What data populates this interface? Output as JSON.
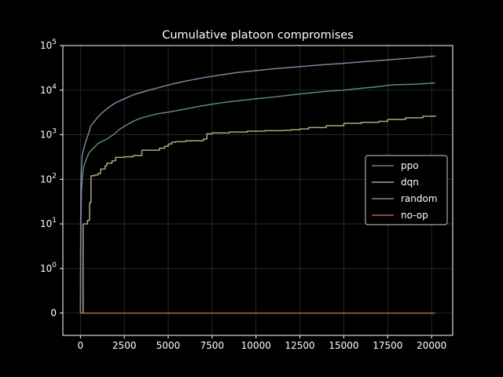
{
  "chart_data": {
    "type": "line",
    "title": "Cumulative platoon compromises",
    "xlabel": "",
    "ylabel": "",
    "yscale": "symlog",
    "xlim": [
      -1000,
      21200
    ],
    "ylim": [
      -0.5,
      100000
    ],
    "grid": true,
    "legend_position": "center-right",
    "background": "#000000",
    "x_ticks": [
      0,
      2500,
      5000,
      7500,
      10000,
      12500,
      15000,
      17500,
      20000
    ],
    "x_tick_labels": [
      "0",
      "2500",
      "5000",
      "7500",
      "10000",
      "12500",
      "15000",
      "17500",
      "20000"
    ],
    "y_ticks": [
      0,
      1,
      10,
      100,
      1000,
      10000,
      100000
    ],
    "y_tick_labels": [
      "0",
      "10^0",
      "10^1",
      "10^2",
      "10^3",
      "10^4",
      "10^5"
    ],
    "series": [
      {
        "name": "ppo",
        "color": "#5b8a78",
        "step": false,
        "x": [
          0,
          30,
          60,
          100,
          150,
          200,
          300,
          400,
          500,
          600,
          700,
          800,
          900,
          1000,
          1200,
          1500,
          1800,
          2000,
          2200,
          2500,
          2800,
          3000,
          3500,
          4000,
          4500,
          5000,
          6000,
          7000,
          8000,
          9000,
          10000,
          11000,
          12000,
          13000,
          14000,
          15000,
          16000,
          17000,
          17500,
          18000,
          19000,
          20200
        ],
        "values": [
          0,
          12,
          50,
          100,
          150,
          200,
          260,
          330,
          400,
          440,
          480,
          530,
          580,
          640,
          700,
          800,
          950,
          1100,
          1300,
          1550,
          1800,
          2000,
          2400,
          2700,
          3000,
          3200,
          3800,
          4500,
          5200,
          5800,
          6400,
          7000,
          7800,
          8600,
          9400,
          10000,
          11000,
          12000,
          12800,
          13200,
          13600,
          14500
        ]
      },
      {
        "name": "dqn",
        "color": "#a8ab7c",
        "step": true,
        "x": [
          0,
          120,
          150,
          400,
          520,
          600,
          800,
          1000,
          1150,
          1400,
          1500,
          1800,
          2000,
          2500,
          3000,
          3500,
          4500,
          4800,
          5000,
          5200,
          5400,
          6000,
          7000,
          7200,
          7500,
          8500,
          9500,
          10500,
          11500,
          12000,
          12500,
          13000,
          14000,
          15000,
          16000,
          17000,
          17500,
          18500,
          19500,
          20200
        ],
        "values": [
          0,
          0,
          10,
          12,
          30,
          120,
          125,
          135,
          170,
          200,
          230,
          260,
          310,
          320,
          340,
          450,
          500,
          550,
          620,
          680,
          700,
          730,
          800,
          1050,
          1100,
          1150,
          1200,
          1230,
          1250,
          1300,
          1350,
          1450,
          1600,
          1800,
          1900,
          2000,
          2200,
          2400,
          2600,
          2750
        ]
      },
      {
        "name": "random",
        "color": "#8481a3",
        "step": false,
        "x": [
          0,
          20,
          50,
          100,
          200,
          300,
          400,
          500,
          600,
          800,
          1000,
          1200,
          1500,
          1800,
          2000,
          2500,
          3000,
          3500,
          4000,
          4500,
          5000,
          5500,
          6000,
          7000,
          8000,
          9000,
          10000,
          11000,
          12000,
          13000,
          14000,
          15000,
          16000,
          17000,
          18000,
          19000,
          20200
        ],
        "values": [
          0,
          50,
          150,
          350,
          500,
          700,
          900,
          1200,
          1600,
          2000,
          2500,
          3000,
          3800,
          4600,
          5200,
          6400,
          7800,
          9000,
          10200,
          11500,
          13000,
          14500,
          16000,
          19000,
          22000,
          25000,
          27500,
          30000,
          32500,
          35000,
          37500,
          40000,
          43000,
          46000,
          49500,
          53000,
          58000
        ]
      },
      {
        "name": "no-op",
        "color": "#b5624e",
        "step": false,
        "x": [
          0,
          20200
        ],
        "values": [
          0,
          0
        ]
      }
    ]
  }
}
